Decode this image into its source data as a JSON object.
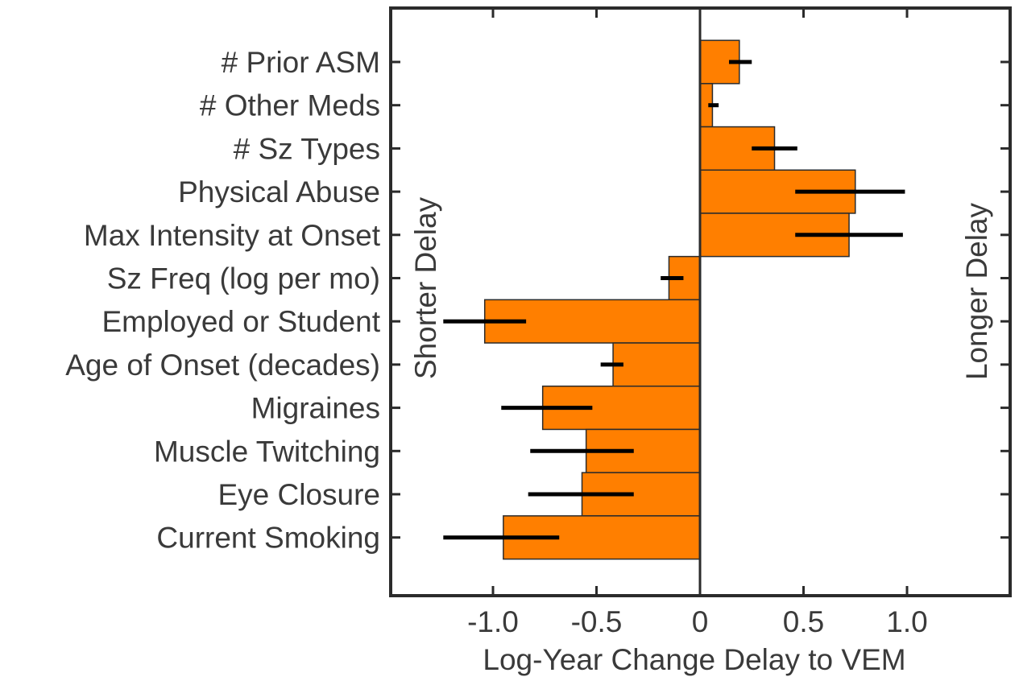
{
  "chart_data": {
    "type": "bar",
    "orientation": "horizontal",
    "categories": [
      "# Prior ASM",
      "# Other Meds",
      "# Sz Types",
      "Physical Abuse",
      "Max Intensity at Onset",
      "Sz Freq (log per mo)",
      "Employed or Student",
      "Age of Onset (decades)",
      "Migraines",
      "Muscle Twitching",
      "Eye Closure",
      "Current Smoking"
    ],
    "values": [
      0.19,
      0.06,
      0.36,
      0.75,
      0.72,
      -0.15,
      -1.04,
      -0.42,
      -0.76,
      -0.55,
      -0.57,
      -0.95
    ],
    "error_bars": [
      [
        0.14,
        0.25
      ],
      [
        0.04,
        0.09
      ],
      [
        0.25,
        0.47
      ],
      [
        0.46,
        0.99
      ],
      [
        0.46,
        0.98
      ],
      [
        -0.19,
        -0.08
      ],
      [
        -1.24,
        -0.84
      ],
      [
        -0.48,
        -0.37
      ],
      [
        -0.96,
        -0.52
      ],
      [
        -0.82,
        -0.32
      ],
      [
        -0.83,
        -0.32
      ],
      [
        -1.24,
        -0.68
      ]
    ],
    "xlabel": "Log-Year Change Delay to VEM",
    "ylabel": "",
    "xlim": [
      -1.5,
      1.5
    ],
    "xticks": [
      -1.0,
      -0.5,
      0,
      0.5,
      1.0
    ],
    "xtick_labels": [
      "-1.0",
      "-0.5",
      "0",
      "0.5",
      "1.0"
    ],
    "left_annotation": "Shorter Delay",
    "right_annotation": "Longer Delay",
    "grid": false,
    "colors": {
      "bar": "#ff7f00",
      "error": "#000000",
      "axis": "#2b2b2b"
    }
  }
}
